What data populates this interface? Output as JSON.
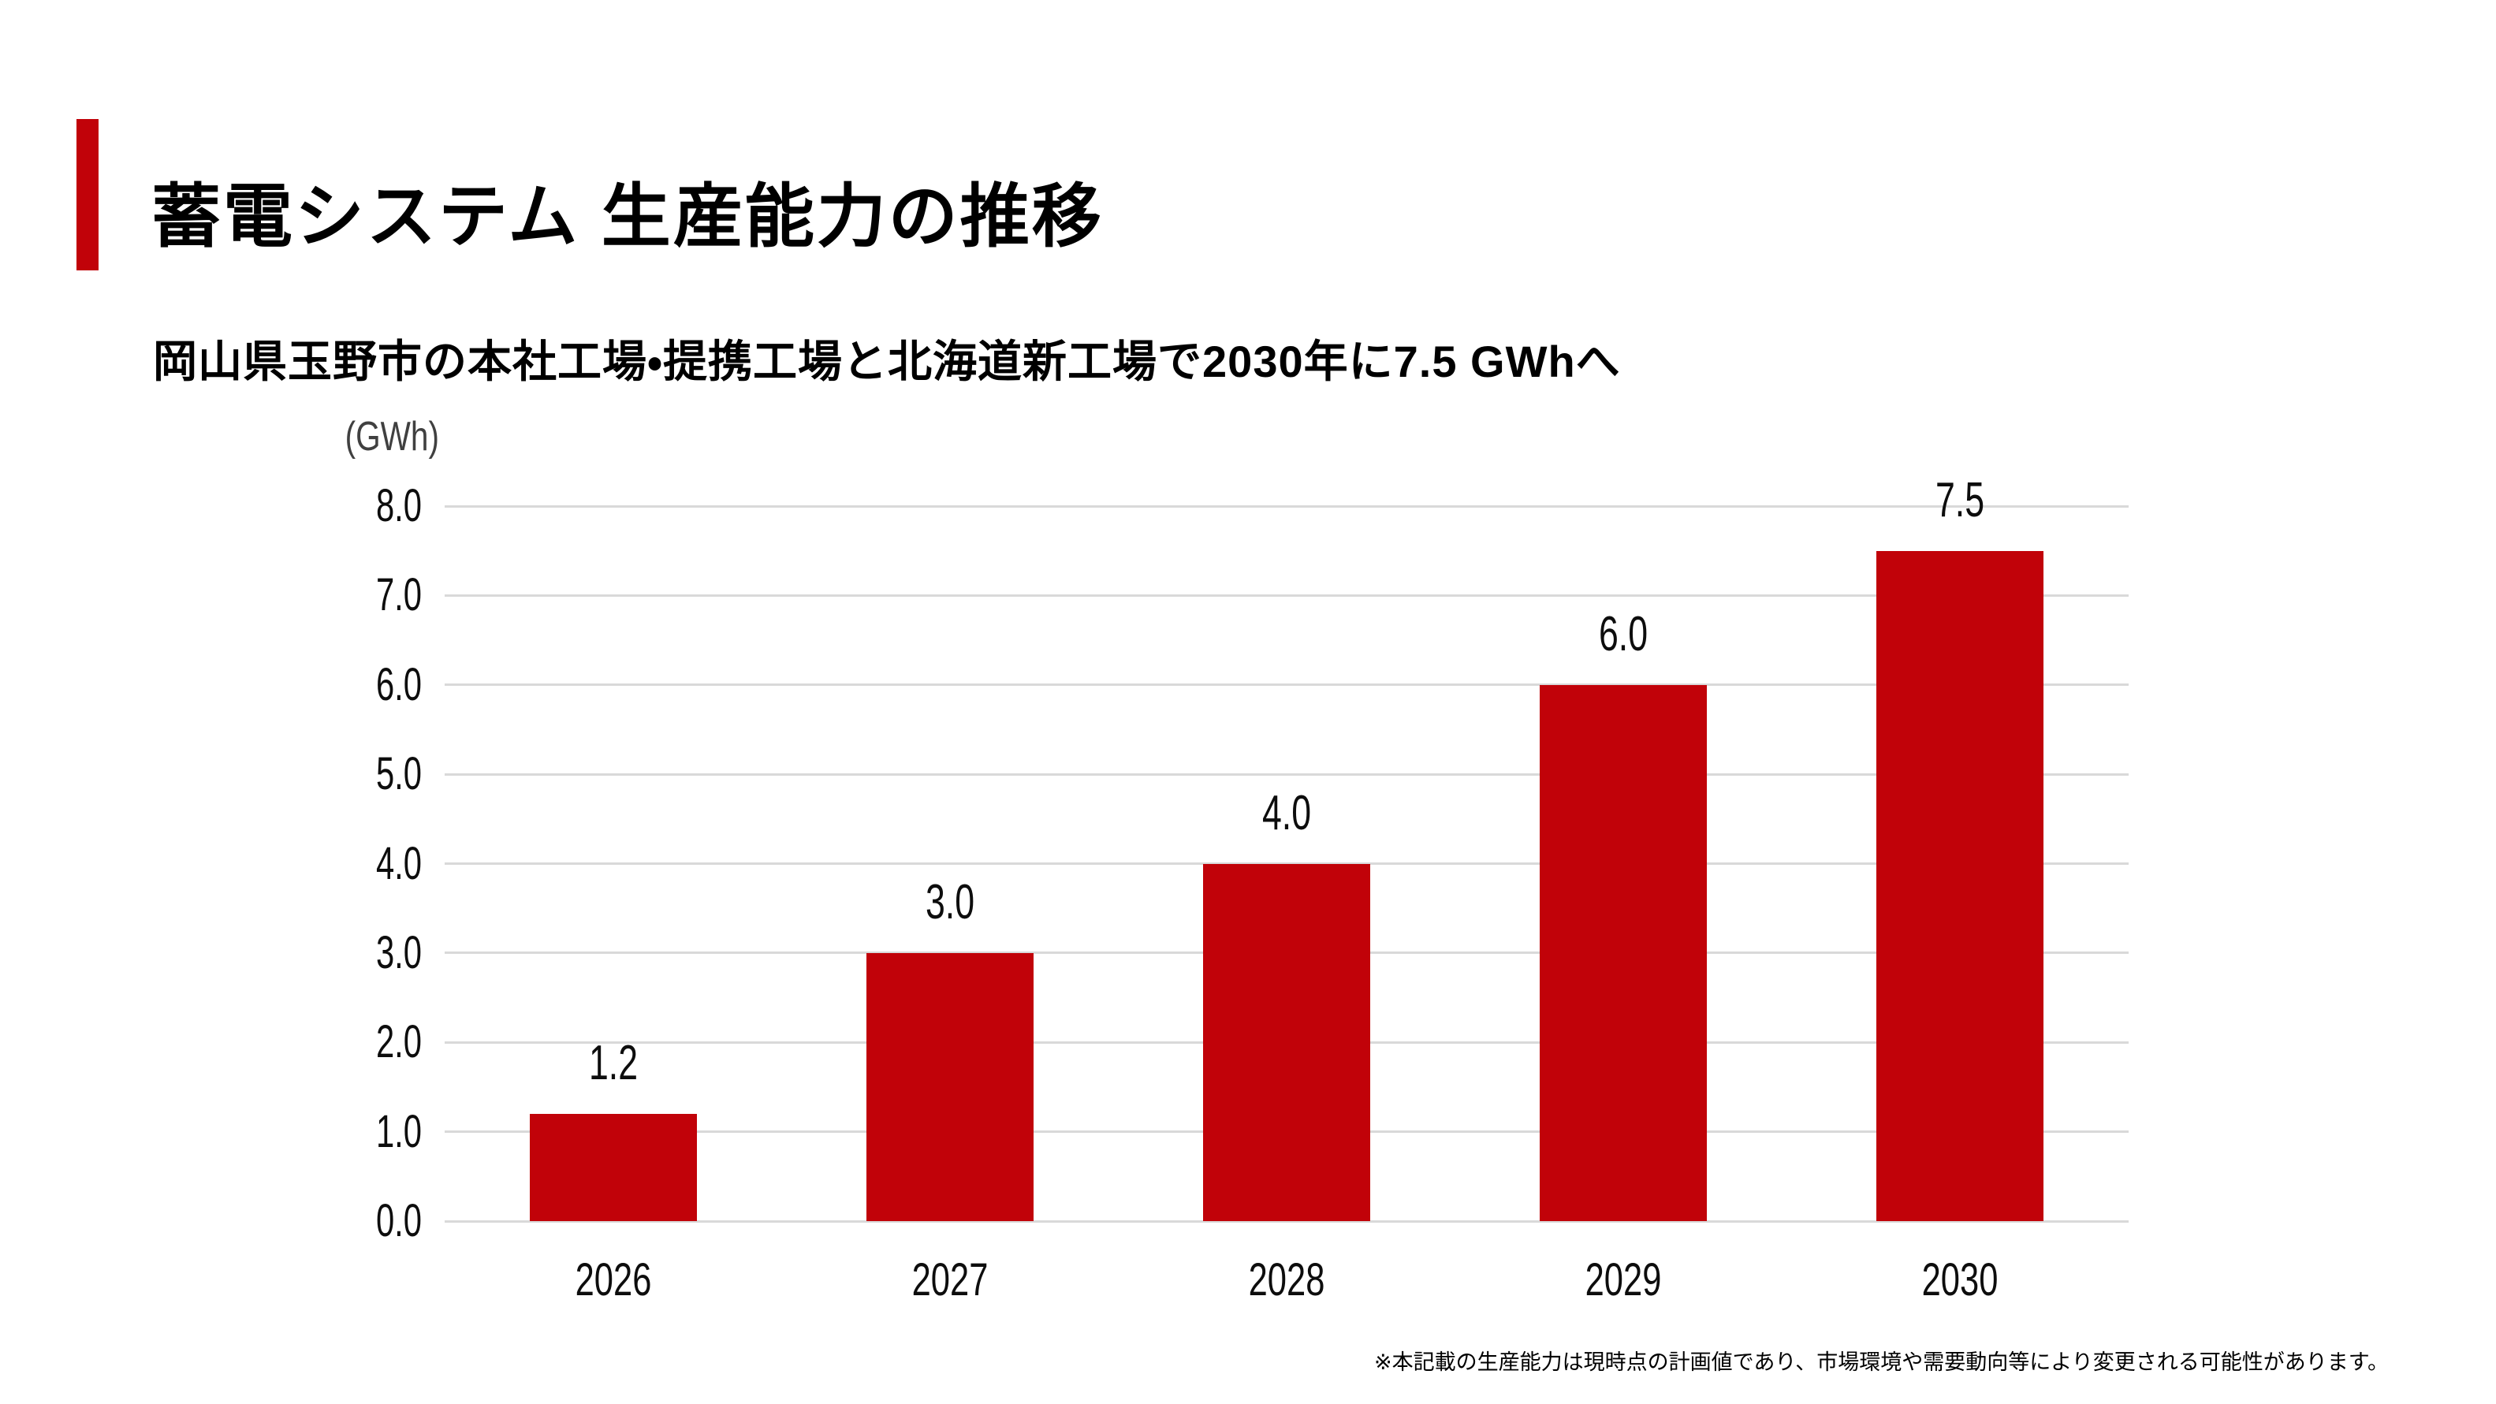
{
  "header": {
    "title": "蓄電システム 生産能力の推移",
    "subtitle": "岡山県玉野市の本社工場・提携工場と北海道新工場で2030年に7.5 GWhへ"
  },
  "footnote": "※本記載の生産能力は現時点の計画値であり、市場環境や需要動向等により変更される可能性があります。",
  "colors": {
    "accent_red": "#C10209",
    "bar_red": "#C10209",
    "gridline_gray": "#D9D9D9",
    "unit_label_gray": "#404040",
    "text_black": "#0D0D0D"
  },
  "chart_data": {
    "type": "bar",
    "title": "蓄電システム 生産能力の推移",
    "subtitle": "岡山県玉野市の本社工場・提携工場と北海道新工場で2030年に7.5 GWhへ",
    "unit_label": "(GWh)",
    "xlabel": "",
    "ylabel": "GWh",
    "categories": [
      "2026",
      "2027",
      "2028",
      "2029",
      "2030"
    ],
    "values": [
      1.2,
      3.0,
      4.0,
      6.0,
      7.5
    ],
    "data_labels": [
      "1.2",
      "3.0",
      "4.0",
      "6.0",
      "7.5"
    ],
    "y_ticks": [
      "0.0",
      "1.0",
      "2.0",
      "3.0",
      "4.0",
      "5.0",
      "6.0",
      "7.0",
      "8.0"
    ],
    "ylim": [
      0,
      8
    ],
    "y_step": 1.0,
    "grid": true,
    "legend": "none",
    "bar_color": "#C10209"
  }
}
